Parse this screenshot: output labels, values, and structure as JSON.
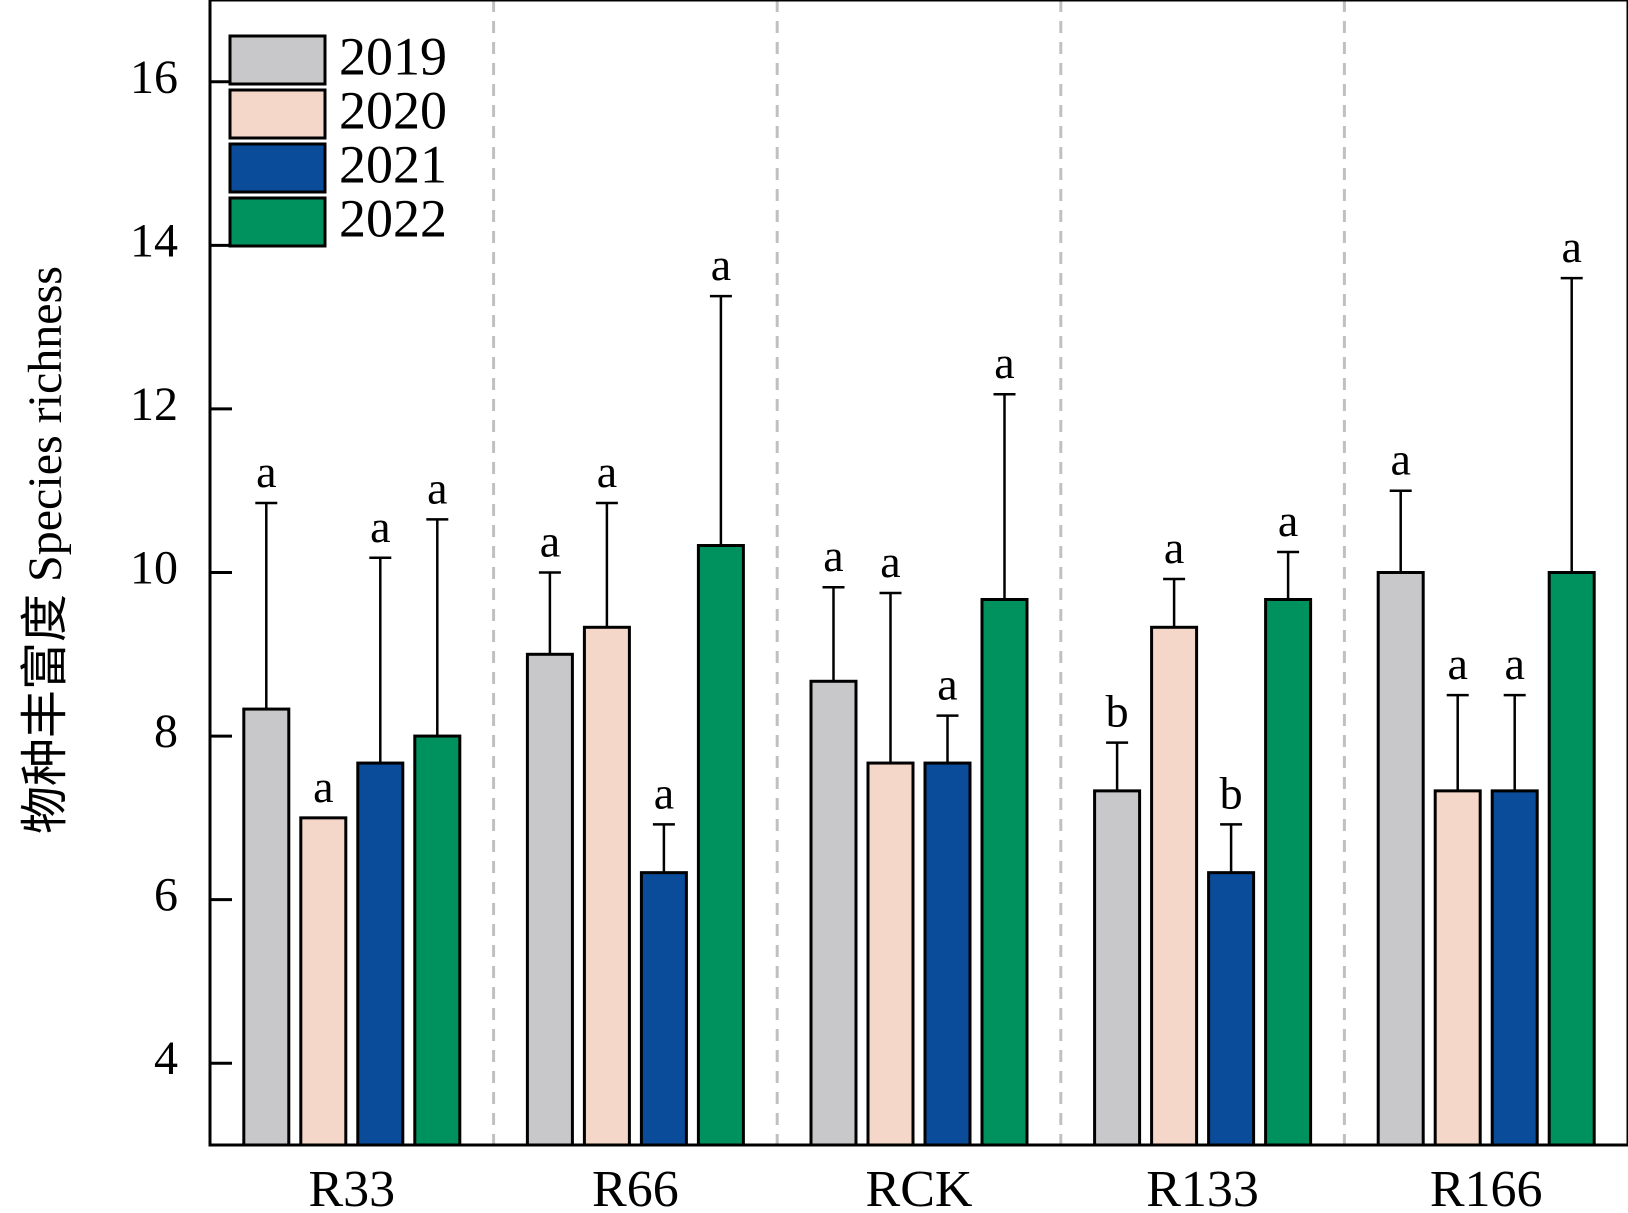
{
  "chart_data": {
    "type": "bar",
    "ylabel": "物种丰富度 Species richness",
    "xlabel": "",
    "ylim": [
      3,
      17
    ],
    "yticks": [
      4,
      6,
      8,
      10,
      12,
      14,
      16
    ],
    "categories": [
      "R33",
      "R66",
      "RCK",
      "R133",
      "R166"
    ],
    "legend_position": "top-left",
    "grid": false,
    "series": [
      {
        "name": "2019",
        "color": "#c8c8ca",
        "values": [
          8.33,
          9.0,
          8.67,
          7.33,
          10.0
        ],
        "error_upper": [
          10.85,
          10.0,
          9.82,
          7.92,
          11.0
        ],
        "labels": [
          "a",
          "a",
          "a",
          "b",
          "a"
        ]
      },
      {
        "name": "2020",
        "color": "#f5d7c9",
        "values": [
          7.0,
          9.33,
          7.67,
          9.33,
          7.33
        ],
        "error_upper": [
          null,
          10.85,
          9.75,
          9.92,
          8.5
        ],
        "labels": [
          "a",
          "a",
          "a",
          "a",
          "a"
        ]
      },
      {
        "name": "2021",
        "color": "#0a4b9a",
        "values": [
          7.67,
          6.33,
          7.67,
          6.33,
          7.33
        ],
        "error_upper": [
          10.18,
          6.92,
          8.25,
          6.92,
          8.5
        ],
        "labels": [
          "a",
          "a",
          "a",
          "b",
          "a"
        ]
      },
      {
        "name": "2022",
        "color": "#00925e",
        "values": [
          8.0,
          10.33,
          9.67,
          9.67,
          10.0
        ],
        "error_upper": [
          10.65,
          13.38,
          12.18,
          10.25,
          13.6
        ],
        "labels": [
          "a",
          "a",
          "a",
          "a",
          "a"
        ]
      }
    ]
  }
}
